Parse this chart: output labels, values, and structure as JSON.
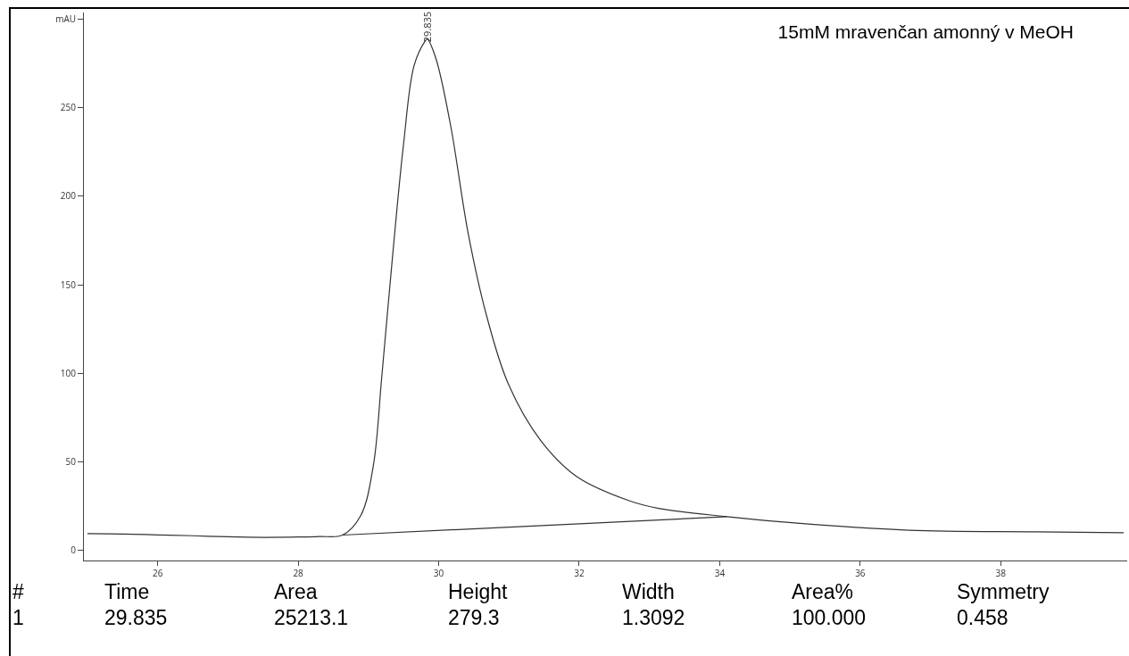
{
  "chart_data": {
    "type": "line",
    "title": "15mM mravenčan amonný v MeOH",
    "series": [
      {
        "color": "#333333",
        "x": [
          25,
          25.5,
          26,
          26.5,
          27,
          27.5,
          28,
          28.3,
          28.63,
          28.89,
          29.07,
          29.19,
          29.35,
          29.5,
          29.65,
          29.81,
          29.835,
          29.96,
          30.17,
          30.42,
          30.68,
          30.99,
          31.45,
          31.96,
          32.72,
          33.13,
          34.1,
          34.95,
          36.7,
          38.5,
          39.75
        ],
        "values": [
          9.2,
          9,
          8.5,
          8,
          7.4,
          7.1,
          7.3,
          7.6,
          8.4,
          19.4,
          47.7,
          98,
          169,
          229.6,
          274,
          288,
          289,
          278,
          240,
          179,
          132.7,
          94,
          62,
          41.6,
          27.7,
          23.5,
          18.8,
          15.6,
          11.1,
          10.2,
          9.7
        ]
      },
      {
        "color": "#333333",
        "x": [
          28.63,
          34.1
        ],
        "values": [
          8.4,
          18.8
        ]
      }
    ],
    "xlim": [
      24.95,
      39.8
    ],
    "xticks": [
      26,
      28,
      30,
      32,
      34,
      36,
      38
    ],
    "ylim": [
      -6,
      304
    ],
    "yticks": [
      0,
      50,
      100,
      150,
      200,
      250,
      {
        "value": 300,
        "label": "mAU"
      }
    ],
    "grid": false,
    "marker": "none",
    "line_style": "solid",
    "annotations": [
      {
        "text": "29.835",
        "x": 29.835,
        "y": 289
      },
      "#",
      "Time",
      "Area",
      "Height",
      "Width",
      "Area%",
      "Symmetry",
      "1",
      "29.835",
      "25213.1",
      "279.3",
      "1.3092",
      "100.000",
      "0.458"
    ]
  }
}
